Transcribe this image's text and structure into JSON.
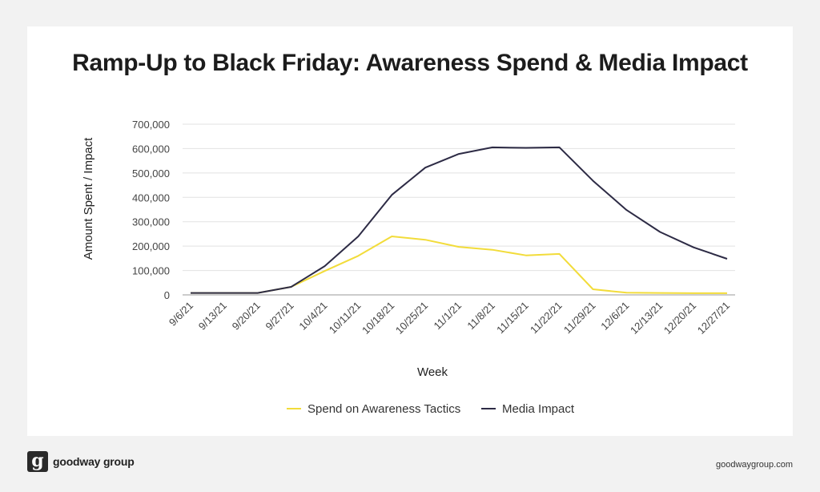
{
  "chart_data": {
    "type": "line",
    "title": "Ramp-Up to Black Friday: Awareness Spend & Media Impact",
    "xlabel": "Week",
    "ylabel": "Amount Spent / Impact",
    "ylim": [
      0,
      700000
    ],
    "yticks": [
      "0",
      "100,000",
      "200,000",
      "300,000",
      "400,000",
      "500,000",
      "600,000",
      "700,000"
    ],
    "grid": true,
    "legend_position": "bottom",
    "categories": [
      "9/6/21",
      "9/13/21",
      "9/20/21",
      "9/27/21",
      "10/4/21",
      "10/11/21",
      "10/18/21",
      "10/25/21",
      "11/1/21",
      "11/8/21",
      "11/15/21",
      "11/22/21",
      "11/29/21",
      "12/6/21",
      "12/13/21",
      "12/20/21",
      "12/27/21"
    ],
    "series": [
      {
        "name": "Spend on Awareness Tactics",
        "color": "#f2dc3a",
        "values": [
          8000,
          8000,
          8000,
          33000,
          98000,
          160000,
          240000,
          226000,
          197000,
          185000,
          162000,
          168000,
          23000,
          9000,
          8000,
          7000,
          7000
        ]
      },
      {
        "name": "Media Impact",
        "color": "#2d2b45",
        "values": [
          8000,
          8000,
          8000,
          33000,
          118000,
          240000,
          410000,
          522000,
          578000,
          605000,
          603000,
          605000,
          468000,
          348000,
          258000,
          195000,
          148000
        ]
      }
    ]
  },
  "brand": {
    "logo_glyph": "g",
    "name": "goodway group",
    "url": "goodwaygroup.com"
  }
}
